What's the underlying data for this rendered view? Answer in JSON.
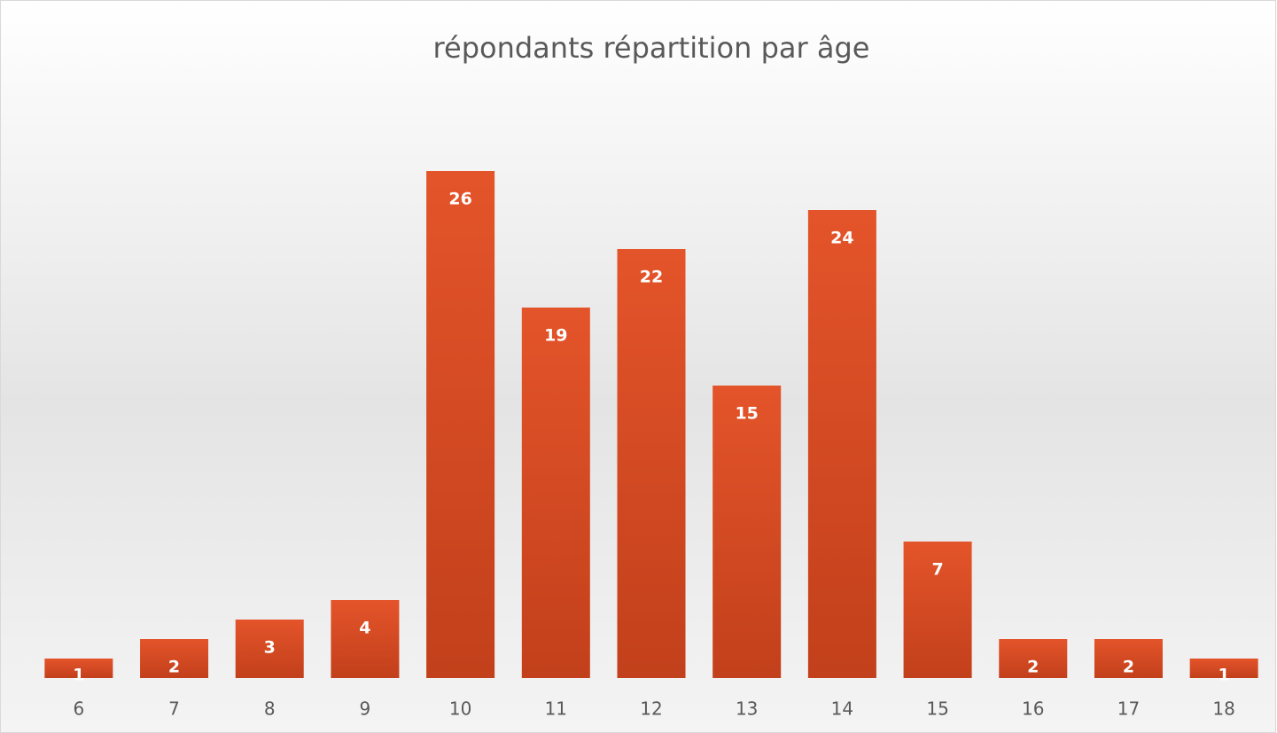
{
  "chart_data": {
    "type": "bar",
    "title": "répondants répartition par âge",
    "categories": [
      "6",
      "7",
      "8",
      "9",
      "10",
      "11",
      "12",
      "13",
      "14",
      "15",
      "16",
      "17",
      "18"
    ],
    "values": [
      1,
      2,
      3,
      4,
      26,
      19,
      22,
      15,
      24,
      7,
      2,
      2,
      1
    ],
    "color": "#d84b24"
  }
}
